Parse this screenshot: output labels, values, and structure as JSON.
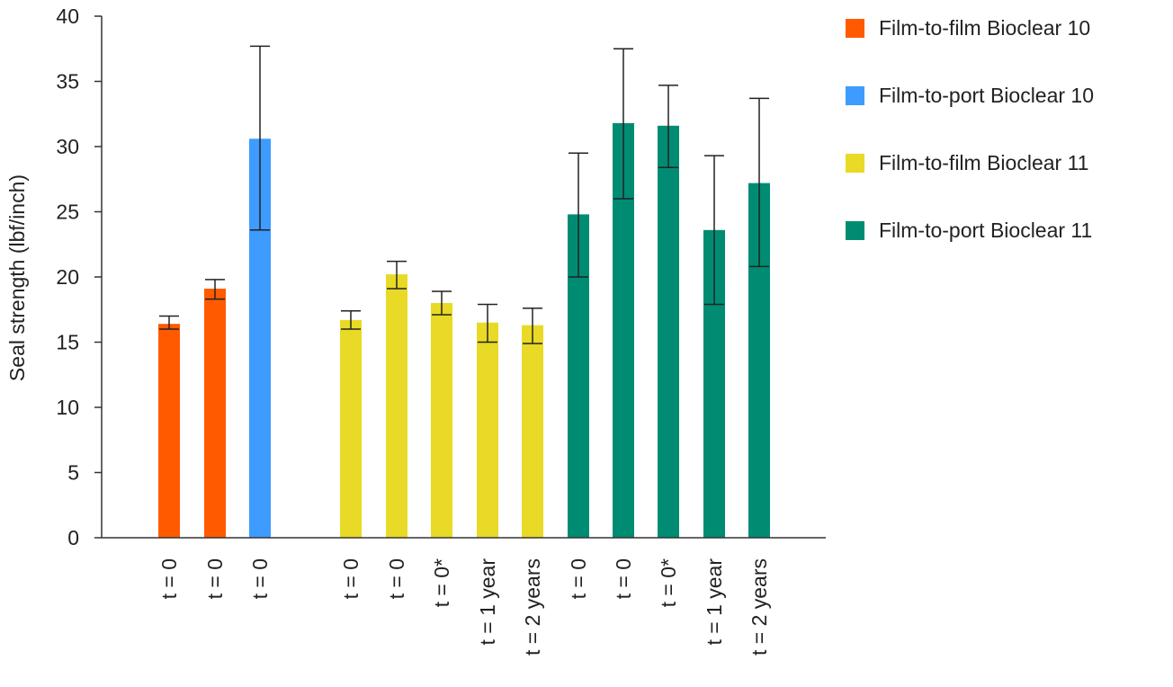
{
  "chart_data": {
    "type": "bar",
    "title": "",
    "xlabel": "",
    "ylabel": "Seal strength (lbf/inch)",
    "ylim": [
      0,
      40
    ],
    "yticks": [
      0,
      5,
      10,
      15,
      20,
      25,
      30,
      35,
      40
    ],
    "grid": false,
    "legend_position": "right",
    "series": [
      {
        "name": "Film-to-film Bioclear 10",
        "color": "#FF5A00"
      },
      {
        "name": "Film-to-port Bioclear 10",
        "color": "#3E9BFF"
      },
      {
        "name": "Film-to-film Bioclear 11",
        "color": "#E8DA26"
      },
      {
        "name": "Film-to-port Bioclear 11",
        "color": "#008C73"
      }
    ],
    "bars": [
      {
        "label": "t = 0",
        "series": 0,
        "value": 16.4,
        "err_low": 16.0,
        "err_high": 17.0
      },
      {
        "label": "t = 0",
        "series": 0,
        "value": 19.1,
        "err_low": 18.3,
        "err_high": 19.8
      },
      {
        "label": "t = 0",
        "series": 1,
        "value": 30.6,
        "err_low": 23.6,
        "err_high": 37.7
      },
      {
        "label": "t = 0",
        "series": 2,
        "value": 16.7,
        "err_low": 16.0,
        "err_high": 17.4
      },
      {
        "label": "t = 0",
        "series": 2,
        "value": 20.2,
        "err_low": 19.1,
        "err_high": 21.2
      },
      {
        "label": "t = 0*",
        "series": 2,
        "value": 18.0,
        "err_low": 17.1,
        "err_high": 18.9
      },
      {
        "label": "t = 1 year",
        "series": 2,
        "value": 16.5,
        "err_low": 15.0,
        "err_high": 17.9
      },
      {
        "label": "t = 2 years",
        "series": 2,
        "value": 16.3,
        "err_low": 14.9,
        "err_high": 17.6
      },
      {
        "label": "t = 0",
        "series": 3,
        "value": 24.8,
        "err_low": 20.0,
        "err_high": 29.5
      },
      {
        "label": "t = 0",
        "series": 3,
        "value": 31.8,
        "err_low": 26.0,
        "err_high": 37.5
      },
      {
        "label": "t = 0*",
        "series": 3,
        "value": 31.6,
        "err_low": 28.4,
        "err_high": 34.7
      },
      {
        "label": "t = 1 year",
        "series": 3,
        "value": 23.6,
        "err_low": 17.9,
        "err_high": 29.3
      },
      {
        "label": "t = 2 years",
        "series": 3,
        "value": 27.2,
        "err_low": 20.8,
        "err_high": 33.7
      }
    ]
  }
}
